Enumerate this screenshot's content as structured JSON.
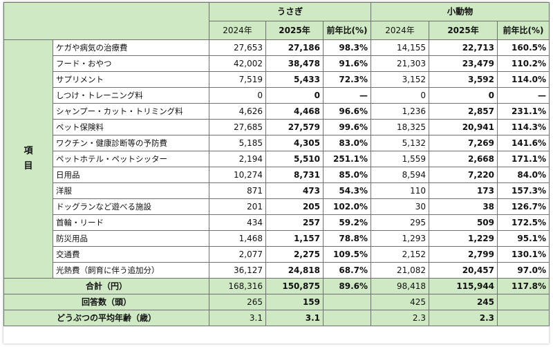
{
  "header": {
    "group1": "うさぎ",
    "group2": "小動物",
    "years": [
      "2024年",
      "2025年"
    ],
    "yoy": "前年比(%)",
    "side_label": "項目"
  },
  "rows": [
    {
      "label": "ケガや病気の治療費",
      "r2024": "27,653",
      "r2025": "27,186",
      "rp": "98.3%",
      "s2024": "14,155",
      "s2025": "22,713",
      "sp": "160.5%"
    },
    {
      "label": "フード・おやつ",
      "r2024": "42,002",
      "r2025": "38,478",
      "rp": "91.6%",
      "s2024": "21,303",
      "s2025": "23,479",
      "sp": "110.2%"
    },
    {
      "label": "サプリメント",
      "r2024": "7,519",
      "r2025": "5,433",
      "rp": "72.3%",
      "s2024": "3,152",
      "s2025": "3,592",
      "sp": "114.0%"
    },
    {
      "label": "しつけ・トレーニング料",
      "r2024": "0",
      "r2025": "0",
      "rp": "—",
      "s2024": "0",
      "s2025": "0",
      "sp": "—"
    },
    {
      "label": "シャンプー・カット・トリミング料",
      "r2024": "4,626",
      "r2025": "4,468",
      "rp": "96.6%",
      "s2024": "1,236",
      "s2025": "2,857",
      "sp": "231.1%"
    },
    {
      "label": "ペット保険料",
      "r2024": "27,685",
      "r2025": "27,579",
      "rp": "99.6%",
      "s2024": "18,325",
      "s2025": "20,941",
      "sp": "114.3%"
    },
    {
      "label": "ワクチン・健康診断等の予防費",
      "r2024": "5,185",
      "r2025": "4,305",
      "rp": "83.0%",
      "s2024": "5,132",
      "s2025": "7,269",
      "sp": "141.6%"
    },
    {
      "label": "ペットホテル・ペットシッター",
      "r2024": "2,194",
      "r2025": "5,510",
      "rp": "251.1%",
      "s2024": "1,559",
      "s2025": "2,668",
      "sp": "171.1%"
    },
    {
      "label": "日用品",
      "r2024": "10,274",
      "r2025": "8,731",
      "rp": "85.0%",
      "s2024": "8,594",
      "s2025": "7,220",
      "sp": "84.0%"
    },
    {
      "label": "洋服",
      "r2024": "871",
      "r2025": "473",
      "rp": "54.3%",
      "s2024": "110",
      "s2025": "173",
      "sp": "157.3%"
    },
    {
      "label": "ドッグランなど遊べる施設",
      "r2024": "201",
      "r2025": "205",
      "rp": "102.0%",
      "s2024": "30",
      "s2025": "38",
      "sp": "126.7%"
    },
    {
      "label": "首輪・リード",
      "r2024": "434",
      "r2025": "257",
      "rp": "59.2%",
      "s2024": "295",
      "s2025": "509",
      "sp": "172.5%"
    },
    {
      "label": "防災用品",
      "r2024": "1,468",
      "r2025": "1,157",
      "rp": "78.8%",
      "s2024": "1,293",
      "s2025": "1,229",
      "sp": "95.1%"
    },
    {
      "label": "交通費",
      "r2024": "2,077",
      "r2025": "2,275",
      "rp": "109.5%",
      "s2024": "2,152",
      "s2025": "2,799",
      "sp": "130.1%"
    },
    {
      "label": "光熱費（飼育に伴う追加分）",
      "r2024": "36,127",
      "r2025": "24,818",
      "rp": "68.7%",
      "s2024": "21,082",
      "s2025": "20,457",
      "sp": "97.0%"
    }
  ],
  "total": {
    "label": "合計（円）",
    "r2024": "168,316",
    "r2025": "150,875",
    "rp": "89.6%",
    "s2024": "98,418",
    "s2025": "115,944",
    "sp": "117.8%"
  },
  "respondents": {
    "label": "回答数（頭）",
    "r2024": "265",
    "r2025": "159",
    "s2024": "425",
    "s2025": "245"
  },
  "avg_age": {
    "label": "どうぶつの平均年齢（歳）",
    "r2024": "3.1",
    "r2025": "3.1",
    "s2024": "2.3",
    "s2025": "2.3"
  },
  "colors": {
    "header_green": "#cfe9c4",
    "border": "#6f6f6f"
  }
}
